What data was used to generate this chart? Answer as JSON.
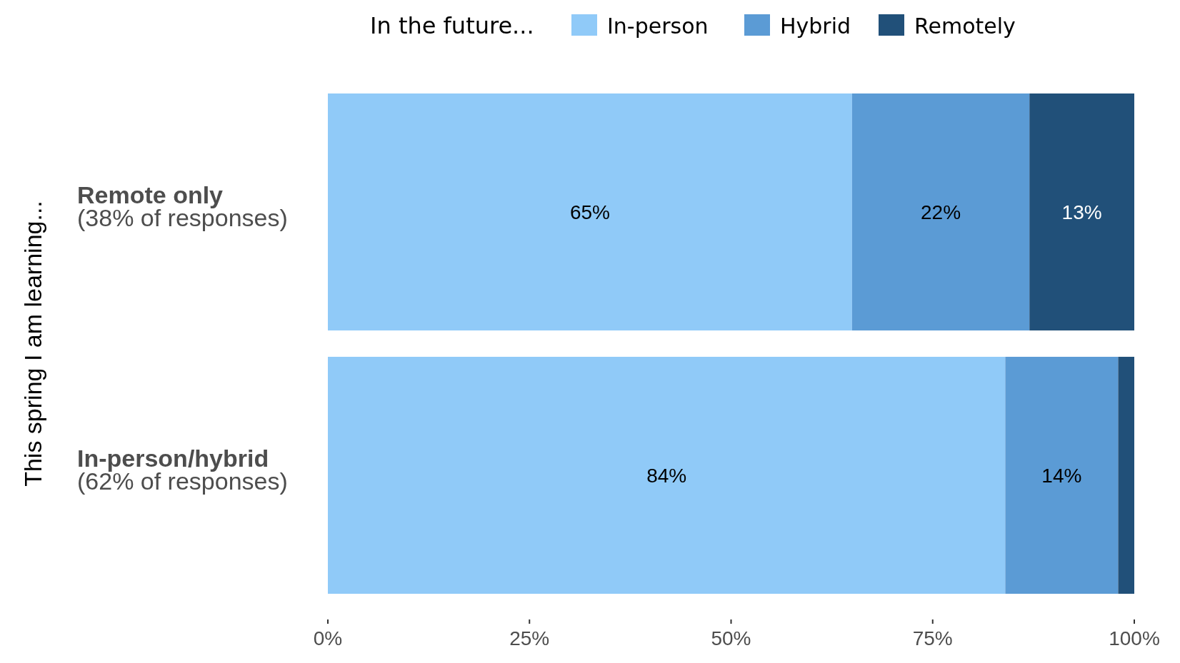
{
  "chart_data": {
    "type": "bar",
    "orientation": "horizontal",
    "stacked": true,
    "categories": [
      "Remote only\n(38% of responses)",
      "In-person/hybrid\n(62% of responses)"
    ],
    "series": [
      {
        "name": "In-person",
        "color": "#90caf8",
        "values": [
          65,
          84
        ],
        "value_labels": [
          "65%",
          "84%"
        ]
      },
      {
        "name": "Hybrid",
        "color": "#5b9bd5",
        "values": [
          22,
          14
        ],
        "value_labels": [
          "22%",
          "14%"
        ]
      },
      {
        "name": "Remotely",
        "color": "#215079",
        "values": [
          13,
          2
        ],
        "value_labels": [
          "13%",
          null
        ]
      }
    ],
    "xlim": [
      0,
      100
    ],
    "xticks": [
      {
        "value": 0,
        "label": "0%"
      },
      {
        "value": 25,
        "label": "25%"
      },
      {
        "value": 50,
        "label": "50%"
      },
      {
        "value": 75,
        "label": "75%"
      },
      {
        "value": 100,
        "label": "100%"
      }
    ],
    "ylabel": "This spring I am learning...",
    "legend_title": "In the future...",
    "legend": "top"
  }
}
